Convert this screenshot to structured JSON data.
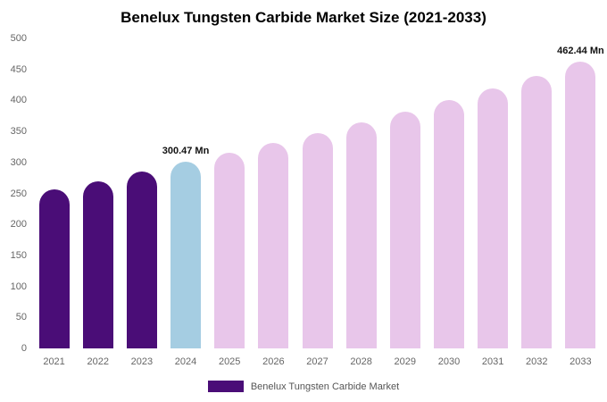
{
  "chart_data": {
    "type": "bar",
    "title": "Benelux Tungsten Carbide Market Size (2021-2033)",
    "categories": [
      "2021",
      "2022",
      "2023",
      "2024",
      "2025",
      "2026",
      "2027",
      "2028",
      "2029",
      "2030",
      "2031",
      "2032",
      "2033"
    ],
    "values": [
      256,
      270,
      285,
      300.47,
      315,
      331,
      347,
      364,
      382,
      400,
      419,
      440,
      462.44
    ],
    "unit": "Mn",
    "ylim": [
      0,
      500
    ],
    "yticks": [
      0,
      50,
      100,
      150,
      200,
      250,
      300,
      350,
      400,
      450,
      500
    ],
    "grid": false,
    "bar_colors": [
      "#4a0d77",
      "#4a0d77",
      "#4a0d77",
      "#a5cde2",
      "#e8c6ea",
      "#e8c6ea",
      "#e8c6ea",
      "#e8c6ea",
      "#e8c6ea",
      "#e8c6ea",
      "#e8c6ea",
      "#e8c6ea",
      "#e8c6ea"
    ],
    "annotations": [
      {
        "category": "2024",
        "index": 3,
        "text": "300.47 Mn"
      },
      {
        "category": "2033",
        "index": 12,
        "text": "462.44 Mn"
      }
    ],
    "legend": {
      "position": "bottom",
      "items": [
        {
          "label": "Benelux Tungsten Carbide Market",
          "color": "#4a0d77"
        }
      ]
    }
  }
}
